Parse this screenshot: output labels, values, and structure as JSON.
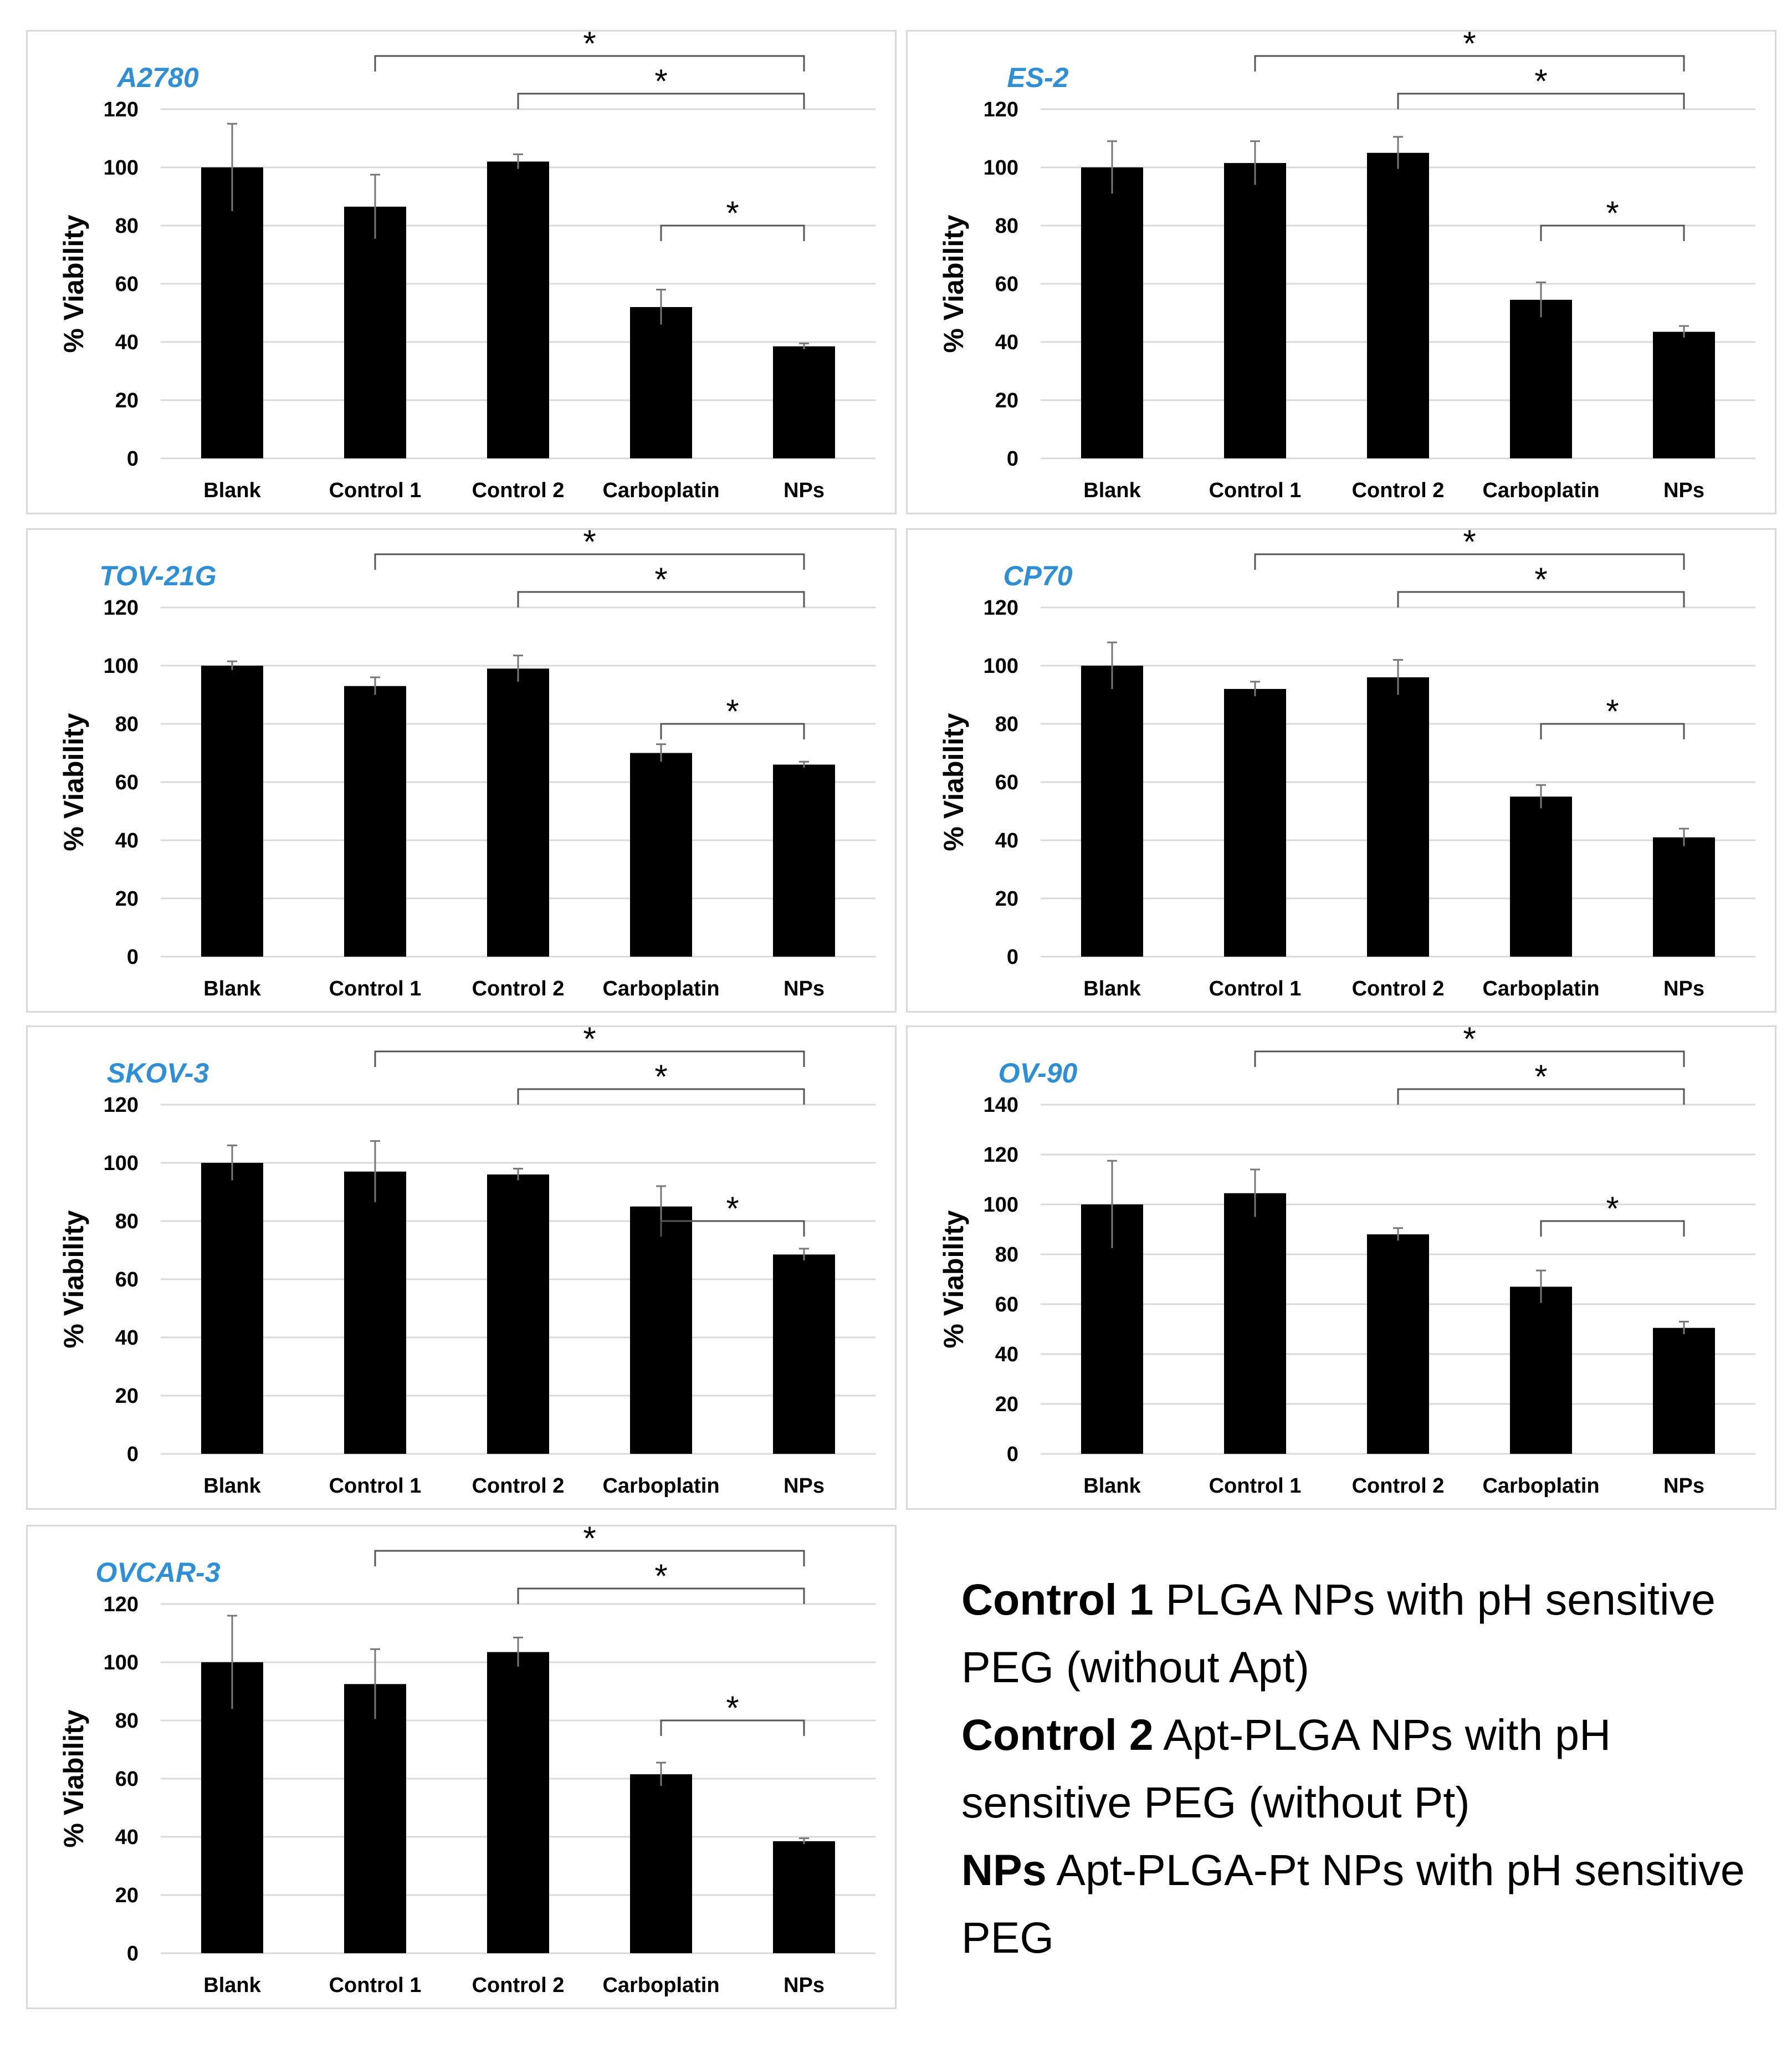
{
  "colors": {
    "bar": "#000000",
    "title": "#2e8fd6",
    "grid": "#d9d9d9",
    "bracket": "#555555",
    "error": "#777777"
  },
  "chart_data": [
    {
      "type": "bar",
      "title": "A2780",
      "ylabel": "% Viability",
      "xlabel": "",
      "categories": [
        "Blank",
        "Control 1",
        "Control 2",
        "Carboplatin",
        "NPs"
      ],
      "values": [
        100,
        86.5,
        102,
        52,
        38.5
      ],
      "errors": [
        15,
        11,
        2.5,
        6,
        1
      ],
      "ylim": [
        0,
        120
      ],
      "yticks": [
        "0",
        "20",
        "40",
        "60",
        "80",
        "100",
        "120"
      ],
      "grid": true,
      "significance": [
        {
          "from": "Control 1",
          "to": "NPs",
          "label": "*"
        },
        {
          "from": "Control 2",
          "to": "NPs",
          "label": "*"
        },
        {
          "from": "Carboplatin",
          "to": "NPs",
          "label": "*"
        }
      ]
    },
    {
      "type": "bar",
      "title": "ES-2",
      "ylabel": "% Viability",
      "xlabel": "",
      "categories": [
        "Blank",
        "Control 1",
        "Control 2",
        "Carboplatin",
        "NPs"
      ],
      "values": [
        100,
        101.5,
        105,
        54.5,
        43.5
      ],
      "errors": [
        9,
        7.5,
        5.5,
        6,
        2
      ],
      "ylim": [
        0,
        120
      ],
      "yticks": [
        "0",
        "20",
        "40",
        "60",
        "80",
        "100",
        "120"
      ],
      "grid": true,
      "significance": [
        {
          "from": "Control 1",
          "to": "NPs",
          "label": "*"
        },
        {
          "from": "Control 2",
          "to": "NPs",
          "label": "*"
        },
        {
          "from": "Carboplatin",
          "to": "NPs",
          "label": "*"
        }
      ]
    },
    {
      "type": "bar",
      "title": "TOV-21G",
      "ylabel": "% Viability",
      "xlabel": "",
      "categories": [
        "Blank",
        "Control 1",
        "Control 2",
        "Carboplatin",
        "NPs"
      ],
      "values": [
        100,
        93,
        99,
        70,
        66
      ],
      "errors": [
        1.5,
        3,
        4.5,
        3,
        1
      ],
      "ylim": [
        0,
        120
      ],
      "yticks": [
        "0",
        "20",
        "40",
        "60",
        "80",
        "100",
        "120"
      ],
      "grid": true,
      "significance": [
        {
          "from": "Control 1",
          "to": "NPs",
          "label": "*"
        },
        {
          "from": "Control 2",
          "to": "NPs",
          "label": "*"
        },
        {
          "from": "Carboplatin",
          "to": "NPs",
          "label": "*"
        }
      ]
    },
    {
      "type": "bar",
      "title": "CP70",
      "ylabel": "% Viability",
      "xlabel": "",
      "categories": [
        "Blank",
        "Control 1",
        "Control 2",
        "Carboplatin",
        "NPs"
      ],
      "values": [
        100,
        92,
        96,
        55,
        41
      ],
      "errors": [
        8,
        2.5,
        6,
        4,
        3
      ],
      "ylim": [
        0,
        120
      ],
      "yticks": [
        "0",
        "20",
        "40",
        "60",
        "80",
        "100",
        "120"
      ],
      "grid": true,
      "significance": [
        {
          "from": "Control 1",
          "to": "NPs",
          "label": "*"
        },
        {
          "from": "Control 2",
          "to": "NPs",
          "label": "*"
        },
        {
          "from": "Carboplatin",
          "to": "NPs",
          "label": "*"
        }
      ]
    },
    {
      "type": "bar",
      "title": "SKOV-3",
      "ylabel": "% Viability",
      "xlabel": "",
      "categories": [
        "Blank",
        "Control 1",
        "Control 2",
        "Carboplatin",
        "NPs"
      ],
      "values": [
        100,
        97,
        96,
        85,
        68.5
      ],
      "errors": [
        6,
        10.5,
        2,
        7,
        2
      ],
      "ylim": [
        0,
        120
      ],
      "yticks": [
        "0",
        "20",
        "40",
        "60",
        "80",
        "100",
        "120"
      ],
      "grid": true,
      "significance": [
        {
          "from": "Control 1",
          "to": "NPs",
          "label": "*"
        },
        {
          "from": "Control 2",
          "to": "NPs",
          "label": "*"
        },
        {
          "from": "Carboplatin",
          "to": "NPs",
          "label": "*"
        }
      ]
    },
    {
      "type": "bar",
      "title": "OV-90",
      "ylabel": "% Viability",
      "xlabel": "",
      "categories": [
        "Blank",
        "Control 1",
        "Control 2",
        "Carboplatin",
        "NPs"
      ],
      "values": [
        100,
        104.5,
        88,
        67,
        50.5
      ],
      "errors": [
        17.5,
        9.5,
        2.5,
        6.5,
        2.5
      ],
      "ylim": [
        0,
        140
      ],
      "yticks": [
        "0",
        "20",
        "40",
        "60",
        "80",
        "100",
        "120",
        "140"
      ],
      "grid": true,
      "significance": [
        {
          "from": "Control 1",
          "to": "NPs",
          "label": "*"
        },
        {
          "from": "Control 2",
          "to": "NPs",
          "label": "*"
        },
        {
          "from": "Carboplatin",
          "to": "NPs",
          "label": "*"
        }
      ]
    },
    {
      "type": "bar",
      "title": "OVCAR-3",
      "ylabel": "% Viability",
      "xlabel": "",
      "categories": [
        "Blank",
        "Control 1",
        "Control 2",
        "Carboplatin",
        "NPs"
      ],
      "values": [
        100,
        92.5,
        103.5,
        61.5,
        38.5
      ],
      "errors": [
        16,
        12,
        5,
        4,
        1
      ],
      "ylim": [
        0,
        120
      ],
      "yticks": [
        "0",
        "20",
        "40",
        "60",
        "80",
        "100",
        "120"
      ],
      "grid": true,
      "significance": [
        {
          "from": "Control 1",
          "to": "NPs",
          "label": "*"
        },
        {
          "from": "Control 2",
          "to": "NPs",
          "label": "*"
        },
        {
          "from": "Carboplatin",
          "to": "NPs",
          "label": "*"
        }
      ]
    }
  ],
  "legend": [
    {
      "key": "Control 1",
      "text": " PLGA NPs with pH sensitive PEG (without Apt)"
    },
    {
      "key": "Control 2",
      "text": " Apt-PLGA NPs with pH sensitive PEG (without Pt)"
    },
    {
      "key": "NPs",
      "text": " Apt-PLGA-Pt NPs with pH sensitive PEG"
    }
  ]
}
